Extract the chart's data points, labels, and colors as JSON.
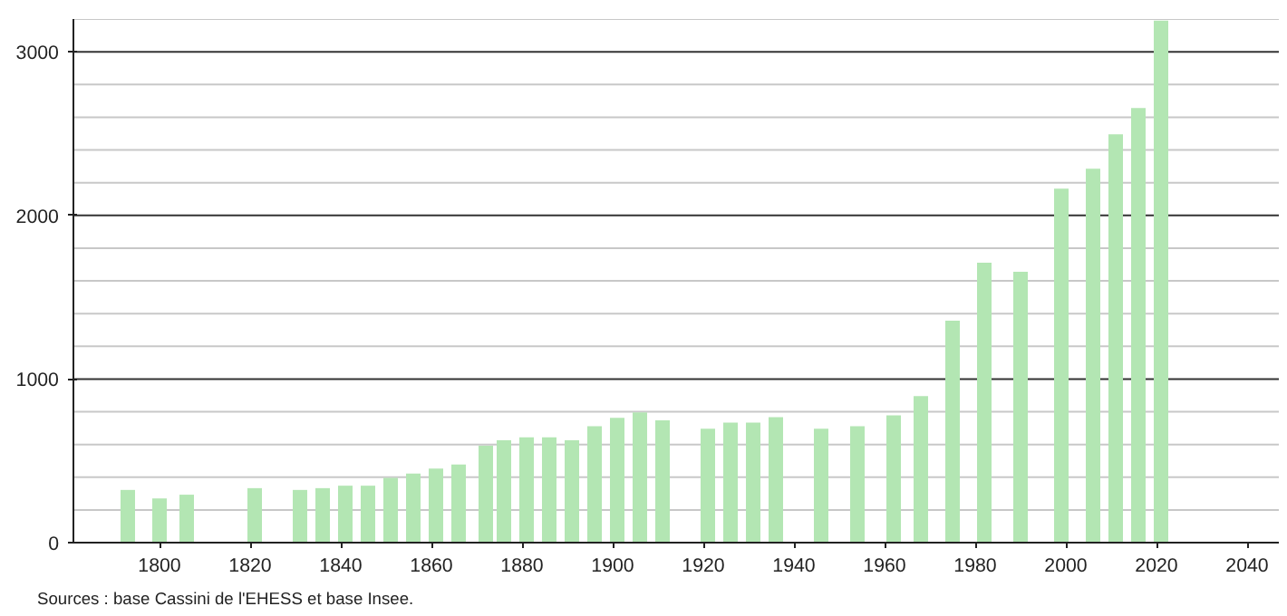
{
  "chart_data": {
    "type": "bar",
    "color": "#b3e6b3",
    "x": [
      1793,
      1800,
      1806,
      1821,
      1831,
      1836,
      1841,
      1846,
      1851,
      1856,
      1861,
      1866,
      1872,
      1876,
      1881,
      1886,
      1891,
      1896,
      1901,
      1906,
      1911,
      1921,
      1926,
      1931,
      1936,
      1946,
      1954,
      1962,
      1968,
      1975,
      1982,
      1990,
      1999,
      2006,
      2011,
      2016,
      2021
    ],
    "values": [
      322,
      270,
      293,
      333,
      322,
      333,
      348,
      348,
      396,
      422,
      452,
      478,
      593,
      626,
      644,
      644,
      626,
      711,
      763,
      796,
      748,
      696,
      733,
      733,
      767,
      696,
      711,
      778,
      896,
      1356,
      1711,
      1656,
      2163,
      2285,
      2496,
      2656,
      3190
    ],
    "xlim": [
      1781,
      2047
    ],
    "xticks": [
      1800,
      1820,
      1840,
      1860,
      1880,
      1900,
      1920,
      1940,
      1960,
      1980,
      2000,
      2020,
      2040
    ],
    "ylim": [
      0,
      3200
    ],
    "yticks": [
      0,
      {
        "value": 200,
        "label": null
      },
      {
        "value": 400,
        "label": null
      },
      {
        "value": 600,
        "label": null
      },
      {
        "value": 800,
        "label": null
      },
      1000,
      {
        "value": 1200,
        "label": null
      },
      {
        "value": 1400,
        "label": null
      },
      {
        "value": 1600,
        "label": null
      },
      {
        "value": 1800,
        "label": null
      },
      2000,
      {
        "value": 2200,
        "label": null
      },
      {
        "value": 2400,
        "label": null
      },
      {
        "value": 2600,
        "label": null
      },
      {
        "value": 2800,
        "label": null
      },
      3000,
      {
        "value": 3200,
        "label": null
      }
    ],
    "grid": "y",
    "annotations": [
      "Sources : base Cassini de l'EHESS et base Insee."
    ]
  }
}
